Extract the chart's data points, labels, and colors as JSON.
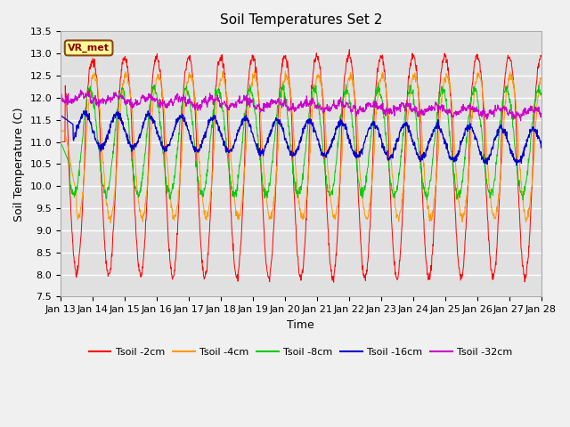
{
  "title": "Soil Temperatures Set 2",
  "xlabel": "Time",
  "ylabel": "Soil Temperature (C)",
  "ylim": [
    7.5,
    13.5
  ],
  "yticks": [
    7.5,
    8.0,
    8.5,
    9.0,
    9.5,
    10.0,
    10.5,
    11.0,
    11.5,
    12.0,
    12.5,
    13.0,
    13.5
  ],
  "xtick_labels": [
    "Jan 13",
    "Jan 14",
    "Jan 15",
    "Jan 16",
    "Jan 17",
    "Jan 18",
    "Jan 19",
    "Jan 20",
    "Jan 21",
    "Jan 22",
    "Jan 23",
    "Jan 24",
    "Jan 25",
    "Jan 26",
    "Jan 27",
    "Jan 28"
  ],
  "colors": {
    "Tsoil_2cm": "#ff0000",
    "Tsoil_4cm": "#ff9900",
    "Tsoil_8cm": "#00cc00",
    "Tsoil_16cm": "#0000cc",
    "Tsoil_32cm": "#cc00cc"
  },
  "legend_labels": [
    "Tsoil -2cm",
    "Tsoil -4cm",
    "Tsoil -8cm",
    "Tsoil -16cm",
    "Tsoil -32cm"
  ],
  "annotation_text": "VR_met",
  "bg_color": "#e0e0e0",
  "grid_color": "#ffffff",
  "fig_bg_color": "#f0f0f0",
  "title_fontsize": 11,
  "label_fontsize": 9,
  "tick_fontsize": 8
}
